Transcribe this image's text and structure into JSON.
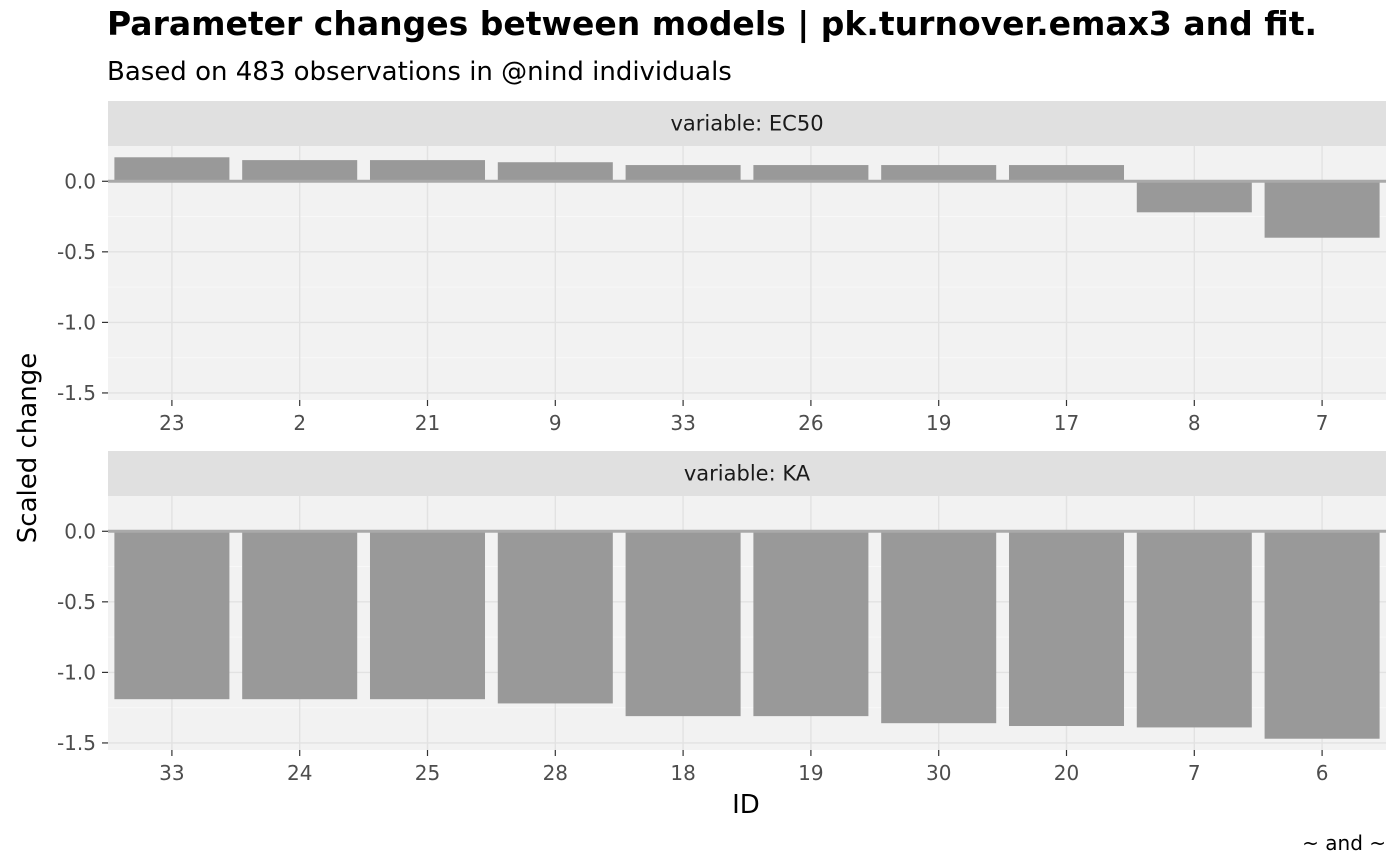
{
  "chart_data": {
    "type": "bar",
    "title": "Parameter changes between models | pk.turnover.emax3 and fit.",
    "subtitle": "Based on 483 observations in @nind individuals",
    "xlabel": "ID",
    "ylabel": "Scaled change",
    "caption": "~ and ~",
    "ylim": [
      -1.55,
      0.25
    ],
    "yticks": [
      0.0,
      -0.5,
      -1.0,
      -1.5
    ],
    "ytick_labels": [
      "0.0",
      "-0.5",
      "-1.0",
      "-1.5"
    ],
    "grid": true,
    "bar_color": "#999999",
    "panel_background": "#f2f2f2",
    "strip_background": "#e0e0e0",
    "panels": [
      {
        "strip": "variable: EC50",
        "categories": [
          "23",
          "2",
          "21",
          "9",
          "33",
          "26",
          "19",
          "17",
          "8",
          "7"
        ],
        "values": [
          0.17,
          0.15,
          0.15,
          0.135,
          0.115,
          0.115,
          0.115,
          0.115,
          -0.22,
          -0.4
        ]
      },
      {
        "strip": "variable: KA",
        "categories": [
          "33",
          "24",
          "25",
          "28",
          "18",
          "19",
          "30",
          "20",
          "7",
          "6"
        ],
        "values": [
          -1.19,
          -1.19,
          -1.19,
          -1.22,
          -1.31,
          -1.31,
          -1.36,
          -1.38,
          -1.39,
          -1.47
        ]
      }
    ]
  }
}
